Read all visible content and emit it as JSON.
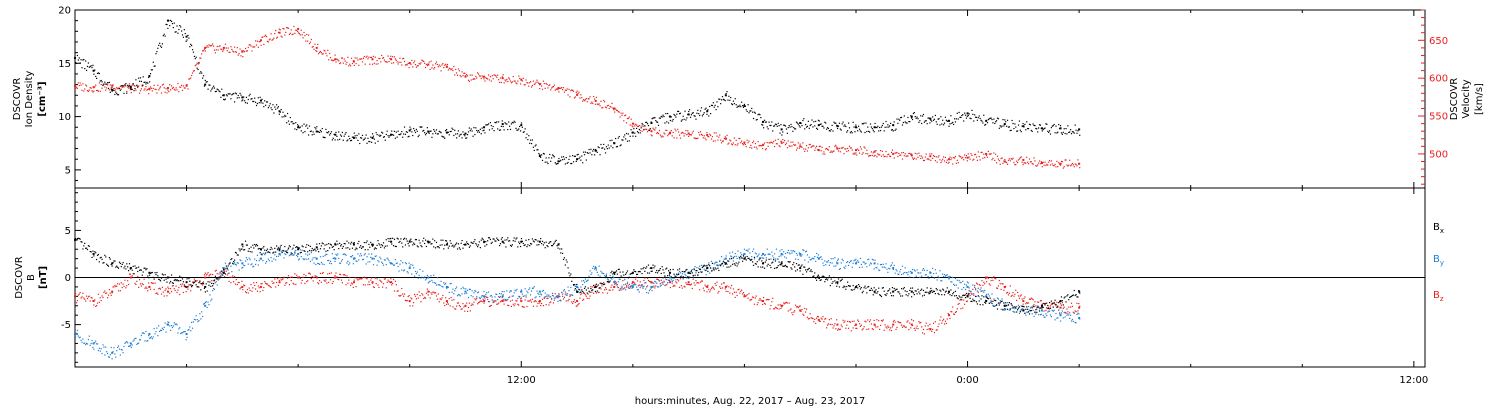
{
  "xlabel": "hours:minutes, Aug. 22, 2017 – Aug. 23, 2017",
  "x_ticks": [
    "12:00",
    "0:00",
    "12:00"
  ],
  "colors": {
    "black": "#000000",
    "red": "#e8201c",
    "blue": "#1f7fd6"
  },
  "chart_data": [
    {
      "type": "scatter",
      "panel": "plasma",
      "x_unit": "hours since Aug. 22, 2017 00:00",
      "x": [
        0,
        0.5,
        1,
        1.5,
        2,
        2.5,
        3,
        3.5,
        4,
        4.5,
        5,
        5.5,
        6,
        6.5,
        7,
        7.5,
        8,
        8.5,
        9,
        9.5,
        10,
        10.5,
        11,
        11.5,
        12,
        12.5,
        13,
        13.5,
        14,
        14.5,
        15,
        15.5,
        16,
        16.5,
        17,
        17.5,
        18,
        18.5,
        19,
        19.5,
        20,
        20.5,
        21,
        21.5,
        22,
        22.5,
        23,
        23.5,
        24,
        24.5,
        25,
        25.5,
        26,
        26.5,
        27
      ],
      "xlim": [
        0,
        36.3
      ],
      "left_axis": {
        "label_lines": [
          "DSCOVR",
          "Ion Density",
          "[cm⁻³]"
        ],
        "ylim": [
          3.3,
          20
        ],
        "ticks": [
          "5",
          "10",
          "15",
          "20"
        ]
      },
      "right_axis": {
        "label_lines": [
          "DSCOVR",
          "Velocity",
          "[km/s]"
        ],
        "ylim": [
          455,
          690
        ],
        "ticks": [
          "500",
          "550",
          "600",
          "650"
        ]
      },
      "series": [
        {
          "name": "",
          "axis": "left",
          "color": "#000000",
          "values": [
            15.5,
            14.3,
            12.5,
            12.8,
            13.8,
            19,
            17.5,
            13,
            12,
            11.8,
            11.5,
            10.5,
            9,
            8.6,
            8.3,
            8,
            8,
            8.3,
            8.7,
            8.6,
            8.5,
            8.4,
            9,
            9.3,
            9.2,
            6.3,
            5.8,
            6,
            6.8,
            7.5,
            8.5,
            9.4,
            10,
            10.2,
            10.5,
            12,
            11,
            9.5,
            8.8,
            9.4,
            9.2,
            9.1,
            9,
            9,
            9.2,
            10,
            9.8,
            9.6,
            10.3,
            9.6,
            9.3,
            9.1,
            8.9,
            8.9,
            8.8
          ]
        },
        {
          "name": "",
          "axis": "right",
          "color": "#e8201c",
          "values": [
            590,
            588,
            590,
            587,
            586,
            587,
            590,
            640,
            640,
            635,
            650,
            660,
            665,
            640,
            625,
            622,
            625,
            625,
            620,
            618,
            615,
            602,
            602,
            600,
            598,
            592,
            587,
            578,
            570,
            560,
            540,
            530,
            528,
            527,
            525,
            520,
            515,
            512,
            515,
            510,
            505,
            507,
            505,
            503,
            500,
            498,
            497,
            493,
            495,
            500,
            490,
            492,
            488,
            487,
            487
          ]
        }
      ]
    },
    {
      "type": "scatter",
      "panel": "magnetic-field",
      "x_unit": "hours since Aug. 22, 2017 00:00",
      "x": [
        0,
        0.5,
        1,
        1.5,
        2,
        2.5,
        3,
        3.5,
        4,
        4.5,
        5,
        5.5,
        6,
        6.5,
        7,
        7.5,
        8,
        8.5,
        9,
        9.5,
        10,
        10.5,
        11,
        11.5,
        12,
        12.5,
        13,
        13.5,
        14,
        14.5,
        15,
        15.5,
        16,
        16.5,
        17,
        17.5,
        18,
        18.5,
        19,
        19.5,
        20,
        20.5,
        21,
        21.5,
        22,
        22.5,
        23,
        23.5,
        24,
        24.5,
        25,
        25.5,
        26,
        26.5,
        27
      ],
      "xlim": [
        0,
        36.3
      ],
      "left_axis": {
        "label_lines": [
          "DSCOVR",
          "B",
          "[nT]"
        ],
        "ylim": [
          -9.5,
          9.5
        ],
        "ticks": [
          "-5",
          "0",
          "5"
        ]
      },
      "legend_position": "right",
      "series": [
        {
          "name": "B",
          "subscript": "x",
          "color": "#000000",
          "values": [
            4,
            2.5,
            1.5,
            1,
            0.5,
            0,
            -0.5,
            -1,
            0.5,
            3.5,
            3,
            3,
            3,
            3.2,
            3.5,
            3.5,
            3.5,
            3.8,
            3.8,
            3.8,
            3.5,
            3.5,
            3.8,
            3.8,
            3.8,
            3.8,
            3.5,
            -1.5,
            -1,
            0.5,
            0.5,
            1,
            0.5,
            0.5,
            1,
            1.5,
            2,
            1.5,
            1.5,
            1,
            0,
            -0.5,
            -1,
            -1.5,
            -1.5,
            -1.5,
            -1.5,
            -1.5,
            -2,
            -2.5,
            -3,
            -3.5,
            -3,
            -2.5,
            -1.5
          ]
        },
        {
          "name": "B",
          "subscript": "y",
          "color": "#1f7fd6",
          "values": [
            -6,
            -7,
            -8,
            -7,
            -6,
            -5,
            -6,
            -3,
            1,
            1.5,
            2,
            2.5,
            2.5,
            2,
            2,
            2,
            2,
            1.5,
            1,
            0,
            -1,
            -1.5,
            -2,
            -2,
            -1.5,
            -1.5,
            -2,
            -1,
            1,
            -0.5,
            -1,
            -1,
            0,
            0.5,
            1,
            2,
            2.5,
            2.5,
            2.5,
            2.5,
            2,
            1.5,
            1.5,
            1.5,
            1,
            0.5,
            0.5,
            0,
            -1,
            -2,
            -3,
            -3.5,
            -3.5,
            -4,
            -4.3
          ]
        },
        {
          "name": "B",
          "subscript": "z",
          "color": "#e8201c",
          "values": [
            -2,
            -2.5,
            -1.5,
            0,
            -1,
            -1.5,
            -1,
            0,
            0.5,
            -1,
            -1,
            -0.5,
            0,
            0,
            0,
            -0.5,
            -0.5,
            -0.5,
            -2.5,
            -1.5,
            -2.5,
            -3,
            -2.5,
            -2.5,
            -2.5,
            -2.5,
            -2,
            -2.5,
            -1,
            -1,
            -0.5,
            -0.5,
            -0.5,
            -0.5,
            -1,
            -1,
            -2,
            -2.5,
            -3,
            -3.5,
            -4.5,
            -5,
            -5,
            -5,
            -5,
            -5,
            -5.5,
            -4,
            -2,
            0,
            -1,
            -2.5,
            -3,
            -3.2,
            -3.2
          ]
        }
      ]
    }
  ]
}
